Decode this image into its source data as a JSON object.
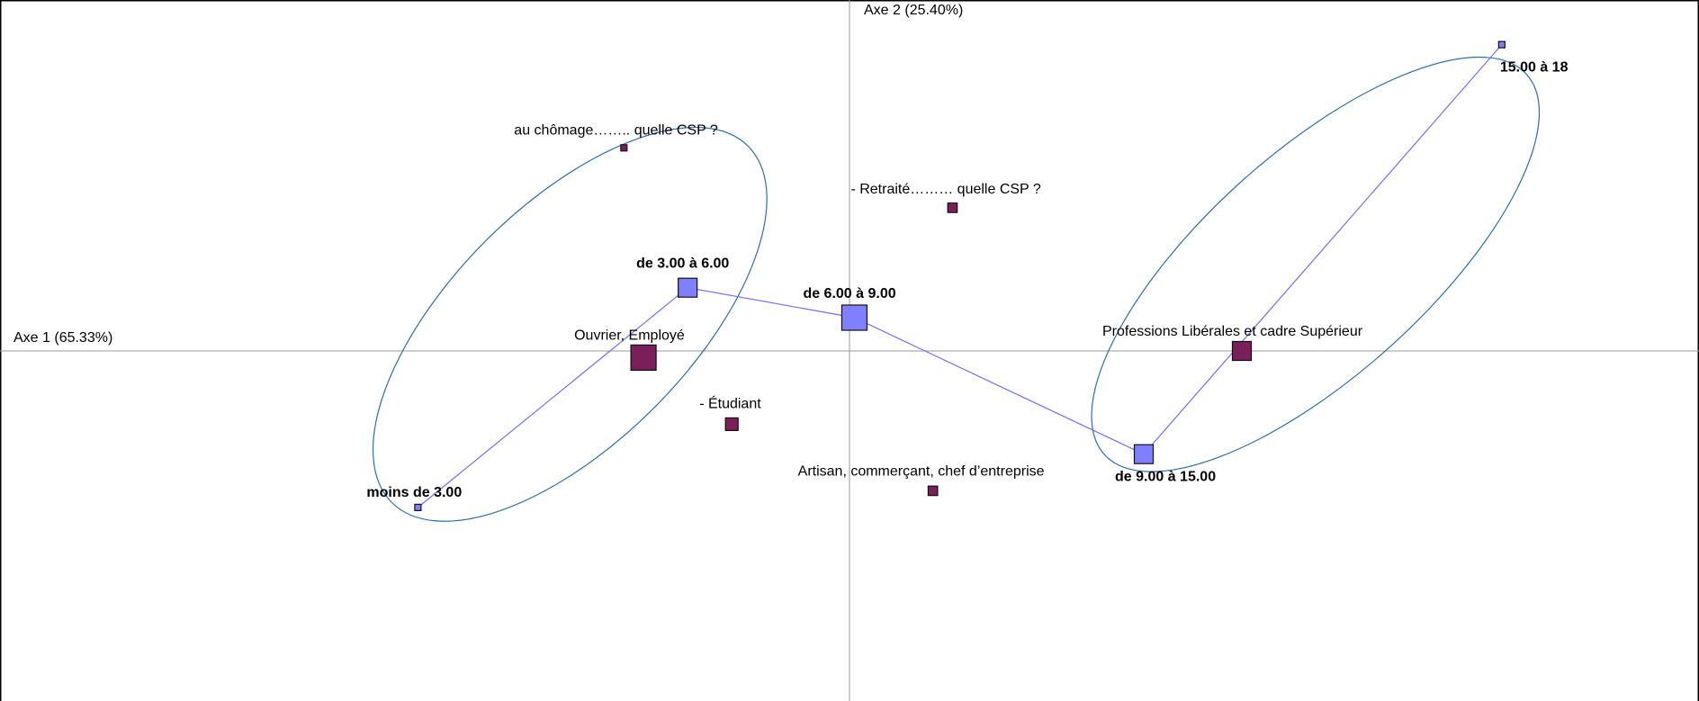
{
  "chart_data": {
    "type": "scatter",
    "axes": {
      "x_label": "Axe 1 (65.33%)",
      "y_label": "Axe 2 (25.40%)"
    },
    "series": [
      {
        "name": "",
        "color": "#8080ff",
        "line_color": "#7070ff",
        "connected": true,
        "label_weight": "bold",
        "points": [
          {
            "label": "moins de 3.00",
            "x": -0.88,
            "y": -0.47,
            "weight": 1
          },
          {
            "label": "de 3.00 à 6.00",
            "x": -0.33,
            "y": 0.19,
            "weight": 3
          },
          {
            "label": "de 6.00 à 9.00",
            "x": 0.01,
            "y": 0.1,
            "weight": 4
          },
          {
            "label": "de 9.00 à 15.00",
            "x": 0.6,
            "y": -0.31,
            "weight": 3
          },
          {
            "label": "15.00 à 18",
            "x": 1.33,
            "y": 0.92,
            "weight": 0.4
          }
        ]
      },
      {
        "name": "",
        "color": "#7b1f5a",
        "connected": false,
        "label_weight": "normal",
        "points": [
          {
            "label": "au chômage…….. quelle CSP ?",
            "x": -0.46,
            "y": 0.61,
            "weight": 0.8
          },
          {
            "label": "- Retraité……… quelle CSP ?",
            "x": 0.21,
            "y": 0.43,
            "weight": 1.5
          },
          {
            "label": "Ouvrier, Employé",
            "x": -0.42,
            "y": -0.02,
            "weight": 4
          },
          {
            "label": "- Étudiant",
            "x": -0.24,
            "y": -0.22,
            "weight": 2
          },
          {
            "label": "Artisan, commerçant, chef d’entreprise",
            "x": 0.17,
            "y": -0.42,
            "weight": 1.5
          },
          {
            "label": "Professions Libérales et cadre Supérieur",
            "x": 0.8,
            "y": 0.0,
            "weight": 3
          }
        ]
      }
    ],
    "ellipses": [
      {
        "center_x": -0.57,
        "center_y": 0.08,
        "semi_axis_1": 1.02,
        "semi_axis_2": 0.48,
        "angle_deg": 45,
        "color": "#2f6fa8"
      },
      {
        "center_x": 0.95,
        "center_y": 0.26,
        "semi_axis_1": 1.15,
        "semi_axis_2": 0.45,
        "angle_deg": 42,
        "color": "#2f6fa8"
      }
    ],
    "xlim": [
      -1.75,
      1.73
    ],
    "ylim": [
      -1.15,
      1.15
    ],
    "grid": false,
    "legend": "none"
  }
}
